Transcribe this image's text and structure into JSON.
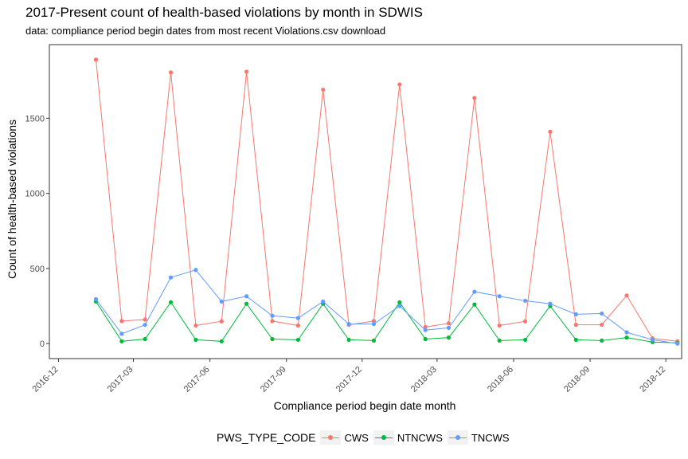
{
  "chart_data": {
    "type": "line",
    "title": "2017-Present count of health-based violations by month in SDWIS",
    "subtitle": "data: compliance period begin dates from most recent Violations.csv download",
    "xlabel": "Compliance period begin date month",
    "ylabel": "Count of health-based violations",
    "x": [
      "2017-01",
      "2017-02",
      "2017-03",
      "2017-04",
      "2017-05",
      "2017-06",
      "2017-07",
      "2017-08",
      "2017-09",
      "2017-10",
      "2017-11",
      "2017-12",
      "2018-01",
      "2018-02",
      "2018-03",
      "2018-04",
      "2018-05",
      "2018-06",
      "2018-07",
      "2018-08",
      "2018-09",
      "2018-10",
      "2018-11",
      "2018-12"
    ],
    "x_ticks": [
      "2016-12",
      "2017-03",
      "2017-06",
      "2017-09",
      "2017-12",
      "2018-03",
      "2018-06",
      "2018-09",
      "2018-12"
    ],
    "y_ticks": [
      0,
      500,
      1000,
      1500
    ],
    "ylim": [
      -100,
      1990
    ],
    "grid": false,
    "legend_position": "bottom",
    "legend_title": "PWS_TYPE_CODE",
    "series": [
      {
        "name": "CWS",
        "color": "#F8766D",
        "values": [
          1890,
          150,
          160,
          1805,
          120,
          148,
          1810,
          150,
          120,
          1690,
          125,
          150,
          1725,
          110,
          135,
          1635,
          120,
          148,
          1410,
          125,
          125,
          320,
          35,
          15
        ]
      },
      {
        "name": "NTNCWS",
        "color": "#00BA38",
        "values": [
          280,
          15,
          30,
          275,
          25,
          15,
          265,
          30,
          25,
          265,
          25,
          20,
          275,
          30,
          40,
          260,
          20,
          25,
          250,
          25,
          20,
          40,
          10,
          5
        ]
      },
      {
        "name": "TNCWS",
        "color": "#619CFF",
        "values": [
          295,
          65,
          125,
          440,
          490,
          280,
          315,
          185,
          170,
          280,
          130,
          130,
          250,
          90,
          105,
          345,
          315,
          285,
          265,
          195,
          200,
          75,
          25,
          0
        ]
      }
    ]
  }
}
